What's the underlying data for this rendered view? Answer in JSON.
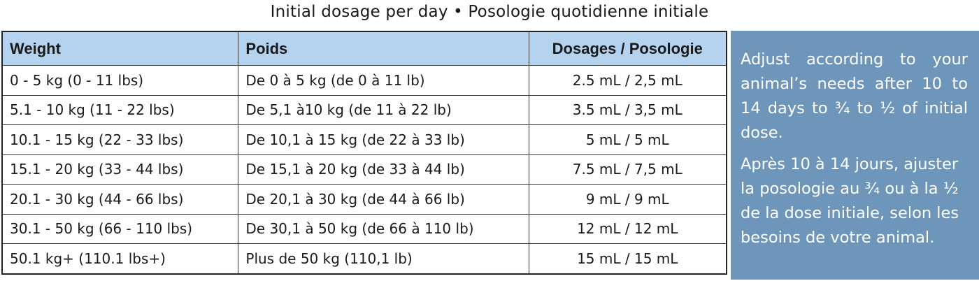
{
  "title": "Initial dosage per day • Posologie quotidienne initiale",
  "table": {
    "headers": [
      "Weight",
      "Poids",
      "Dosages / Posologie"
    ],
    "rows": [
      [
        "0 - 5 kg (0 - 11 lbs)",
        "De 0 à 5 kg (de 0 à 11 lb)",
        "2.5 mL / 2,5 mL"
      ],
      [
        "5.1 - 10 kg (11 - 22 lbs)",
        "De 5,1 à10 kg (de 11 à 22 lb)",
        "3.5 mL / 3,5 mL"
      ],
      [
        "10.1 - 15 kg (22 - 33 lbs)",
        "De 10,1 à 15 kg (de 22 à 33 lb)",
        "5 mL / 5 mL"
      ],
      [
        "15.1 - 20 kg (33 - 44 lbs)",
        "De 15,1 à 20 kg (de 33 à 44 lb)",
        "7.5 mL / 7,5 mL"
      ],
      [
        "20.1 - 30 kg (44 - 66 lbs)",
        "De 20,1 à 30 kg (de 44 à 66 lb)",
        "9 mL / 9 mL"
      ],
      [
        "30.1 - 50 kg (66 - 110 lbs)",
        "De 30,1 à 50 kg (de 66 à 110 lb)",
        "12 mL / 12 mL"
      ],
      [
        "50.1 kg+ (110.1 lbs+)",
        "Plus de 50 kg (110,1 lb)",
        "15 mL / 15 mL"
      ]
    ]
  },
  "note": {
    "paragraphs": [
      "Adjust according to your animal’s needs after 10 to 14 days to ¾ to ½ of initial dose.",
      "Après 10 à 14 jours, ajuster la posologie au ¾ ou à la ½ de la dose initiale, selon les besoins de votre animal."
    ]
  }
}
